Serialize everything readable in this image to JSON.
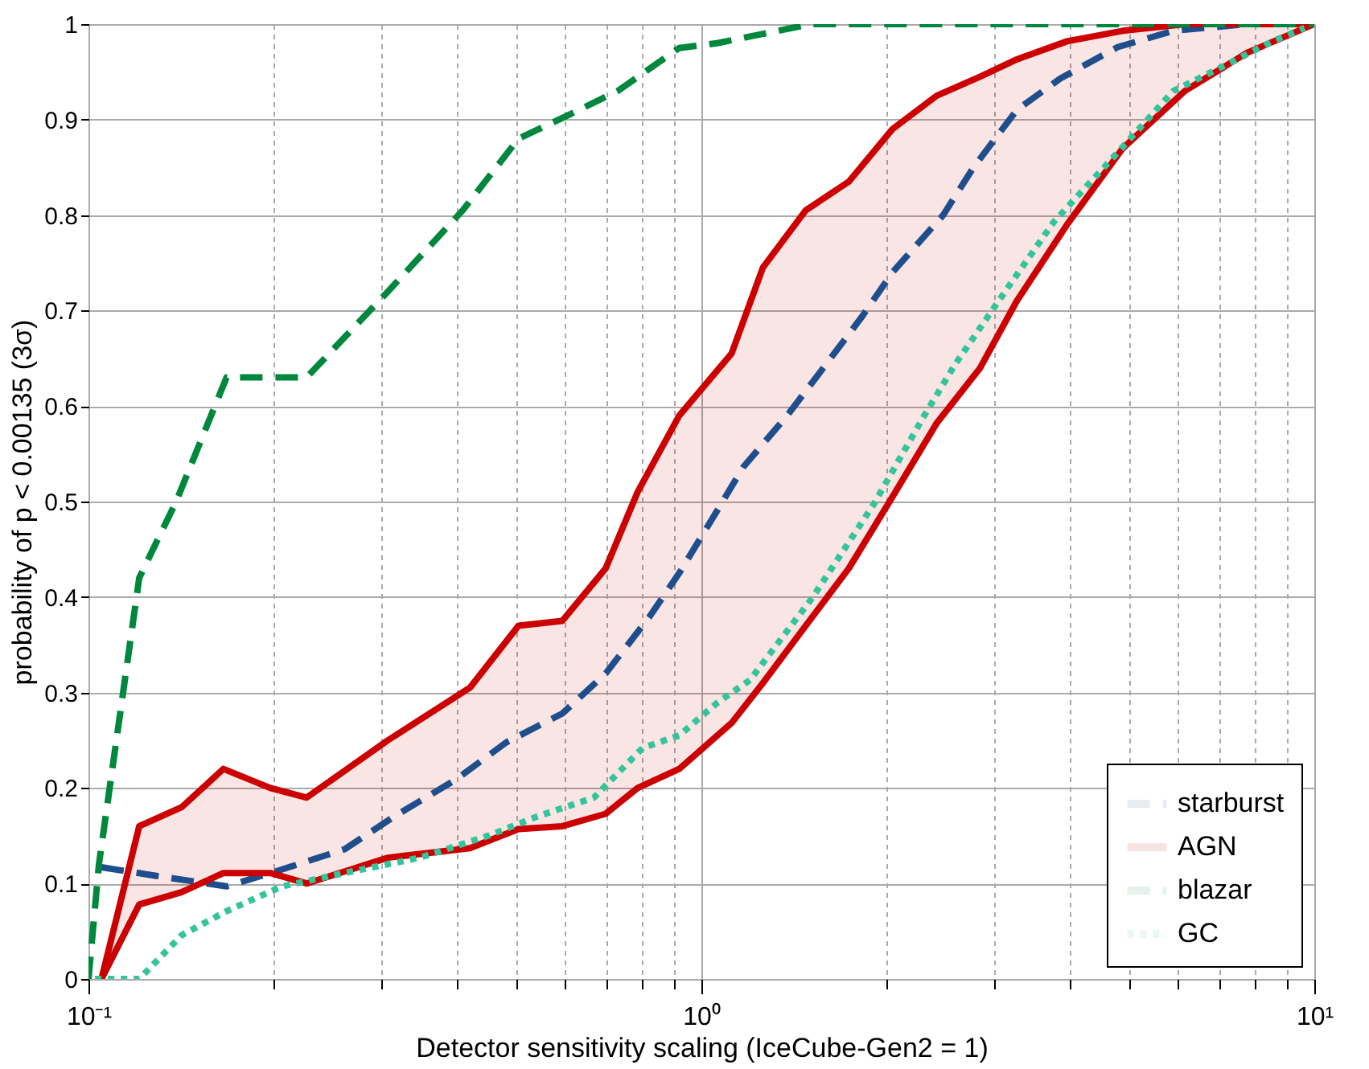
{
  "chart_data": {
    "type": "line",
    "xlabel": "Detector sensitivity scaling (IceCube-Gen2 = 1)",
    "ylabel": "probability of p < 0.00135  (3σ)",
    "log": "x",
    "xlim": [
      0.1,
      10
    ],
    "ylim": [
      0,
      1
    ],
    "xticks": [
      {
        "value": 0.1,
        "label": "10⁻¹"
      },
      {
        "value": 0.2,
        "label": null
      },
      {
        "value": 0.3,
        "label": null
      },
      {
        "value": 0.4,
        "label": null
      },
      {
        "value": 0.5,
        "label": null
      },
      {
        "value": 0.6,
        "label": null
      },
      {
        "value": 0.7,
        "label": null
      },
      {
        "value": 0.8,
        "label": null
      },
      {
        "value": 0.9,
        "label": null
      },
      {
        "value": 1,
        "label": "10⁰"
      },
      {
        "value": 2,
        "label": null
      },
      {
        "value": 3,
        "label": null
      },
      {
        "value": 4,
        "label": null
      },
      {
        "value": 5,
        "label": null
      },
      {
        "value": 6,
        "label": null
      },
      {
        "value": 7,
        "label": null
      },
      {
        "value": 8,
        "label": null
      },
      {
        "value": 9,
        "label": null
      },
      {
        "value": 10,
        "label": "10¹"
      }
    ],
    "yticks": [
      0,
      0.1,
      0.2,
      0.3,
      0.4,
      0.5,
      0.6,
      0.7,
      0.8,
      0.9,
      1
    ],
    "grid": true,
    "legend": "bottom right",
    "marker": "none",
    "series": [
      {
        "name": "starburst",
        "color": "#1f4e8c",
        "line_style": "dashed",
        "x": [
          0.105,
          0.129,
          0.168,
          0.203,
          0.262,
          0.315,
          0.398,
          0.481,
          0.593,
          0.698,
          0.822,
          0.92,
          1.06,
          1.17,
          1.38,
          1.56,
          1.83,
          2.05,
          2.48,
          2.78,
          3.27,
          3.85,
          4.78,
          5.89,
          7.77,
          10
        ],
        "values": [
          0.117,
          0.108,
          0.097,
          0.113,
          0.136,
          0.17,
          0.209,
          0.248,
          0.278,
          0.32,
          0.379,
          0.425,
          0.49,
          0.536,
          0.59,
          0.635,
          0.694,
          0.74,
          0.8,
          0.85,
          0.91,
          0.943,
          0.976,
          0.993,
          1,
          1
        ]
      },
      {
        "name": "AGN",
        "color": "#cc0000",
        "line_style": "solid",
        "x": [
          0.105,
          0.121,
          0.142,
          0.166,
          0.198,
          0.227,
          0.308,
          0.419,
          0.503,
          0.593,
          0.698,
          0.787,
          0.92,
          1.12,
          1.26,
          1.48,
          1.74,
          2.05,
          2.42,
          2.85,
          3.27,
          3.95,
          4.87,
          6.15,
          7.77,
          10
        ],
        "values": [
          0,
          0.16,
          0.18,
          0.22,
          0.2,
          0.19,
          0.25,
          0.305,
          0.37,
          0.375,
          0.43,
          0.51,
          0.59,
          0.655,
          0.745,
          0.805,
          0.835,
          0.89,
          0.925,
          0.945,
          0.963,
          0.982,
          0.993,
          1,
          1,
          1
        ],
        "upper": [
          0,
          0.16,
          0.18,
          0.22,
          0.2,
          0.19,
          0.25,
          0.305,
          0.37,
          0.375,
          0.43,
          0.51,
          0.59,
          0.655,
          0.745,
          0.805,
          0.835,
          0.89,
          0.925,
          0.945,
          0.963,
          0.982,
          0.993,
          1,
          1,
          1
        ],
        "lower": [
          0,
          0.078,
          0.091,
          0.111,
          0.111,
          0.1,
          0.127,
          0.137,
          0.157,
          0.16,
          0.173,
          0.2,
          0.22,
          0.268,
          0.31,
          0.37,
          0.43,
          0.505,
          0.582,
          0.64,
          0.71,
          0.79,
          0.87,
          0.93,
          0.97,
          1
        ]
      },
      {
        "name": "blazar",
        "color": "#00873e",
        "line_style": "dashed",
        "x": [
          0.1,
          0.104,
          0.121,
          0.139,
          0.168,
          0.227,
          0.308,
          0.408,
          0.503,
          0.608,
          0.73,
          0.92,
          1.06,
          1.51,
          10
        ],
        "values": [
          0,
          0.12,
          0.42,
          0.5,
          0.63,
          0.63,
          0.72,
          0.805,
          0.88,
          0.905,
          0.93,
          0.975,
          0.98,
          1,
          1
        ]
      },
      {
        "name": "GC",
        "color": "#33c49a",
        "line_style": "dotted",
        "x": [
          0.1025,
          0.121,
          0.142,
          0.168,
          0.207,
          0.262,
          0.347,
          0.449,
          0.539,
          0.668,
          0.802,
          0.92,
          1.06,
          1.2,
          1.52,
          1.91,
          2.31,
          2.59,
          3.13,
          3.76,
          4.66,
          5.89,
          7.11,
          8.55,
          9.64
        ],
        "values": [
          0,
          0,
          0.046,
          0.071,
          0.097,
          0.111,
          0.127,
          0.15,
          0.17,
          0.19,
          0.242,
          0.255,
          0.289,
          0.313,
          0.4,
          0.497,
          0.59,
          0.643,
          0.72,
          0.793,
          0.858,
          0.93,
          0.956,
          0.982,
          0.996
        ]
      }
    ]
  }
}
